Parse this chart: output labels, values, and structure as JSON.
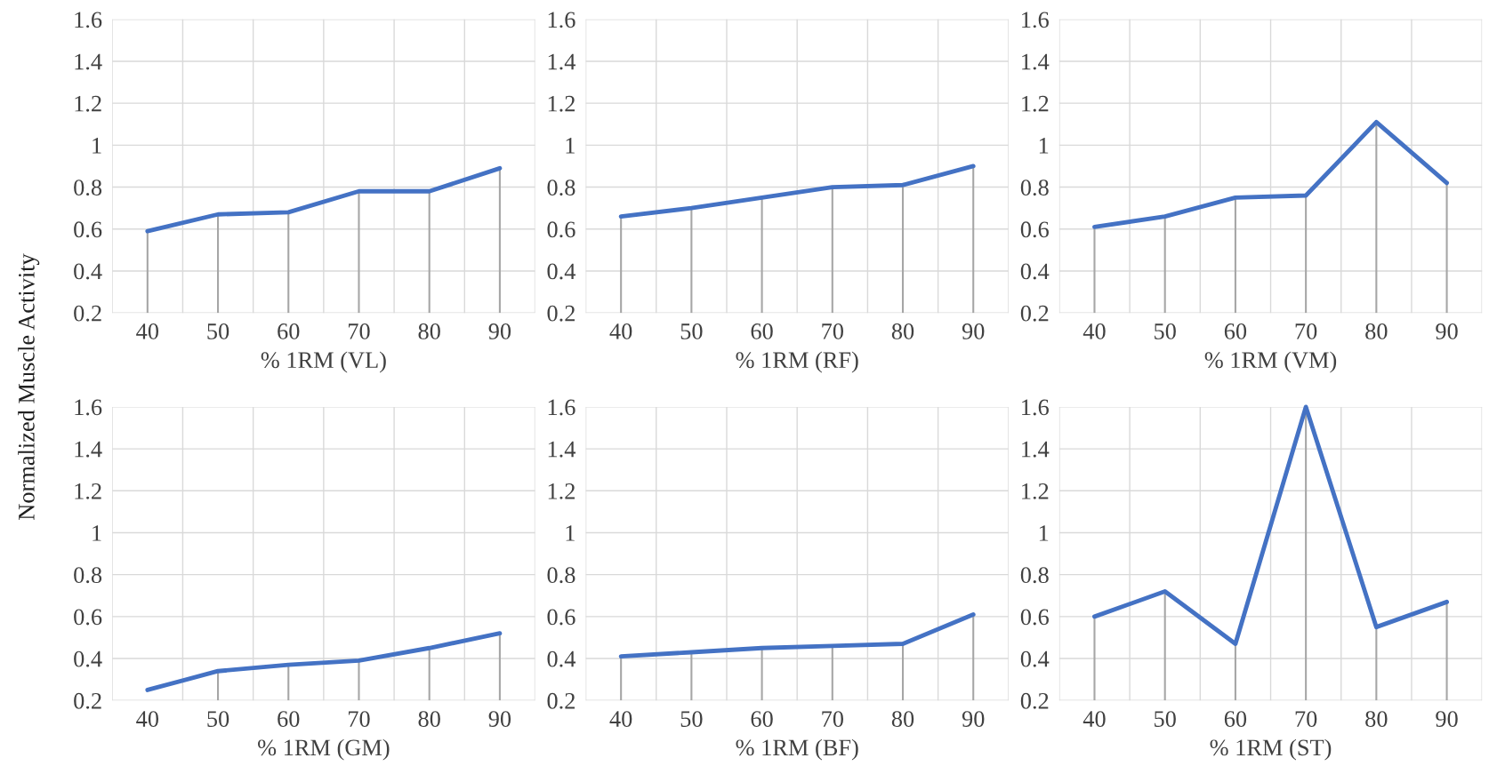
{
  "chart_data": [
    {
      "type": "line",
      "xlabel": "% 1RM (VL)",
      "ylabel": "Normalized Muscle Activity",
      "categories": [
        "40",
        "50",
        "60",
        "70",
        "80",
        "90"
      ],
      "series": [
        {
          "color": "#4472c4",
          "values": [
            0.59,
            0.67,
            0.68,
            0.78,
            0.78,
            0.89
          ],
          "errors": [
            [
              0.2,
              0.59
            ],
            [
              0.2,
              0.67
            ],
            [
              0.2,
              0.68
            ],
            [
              0.2,
              0.78
            ],
            [
              0.2,
              0.78
            ],
            [
              0.2,
              0.89
            ]
          ]
        }
      ],
      "ylim": [
        0.2,
        1.6
      ],
      "yticks": [
        0.2,
        0.4,
        0.6,
        0.8,
        1,
        1.2,
        1.4,
        1.6
      ],
      "grid": true
    },
    {
      "type": "line",
      "xlabel": "% 1RM (RF)",
      "categories": [
        "40",
        "50",
        "60",
        "70",
        "80",
        "90"
      ],
      "series": [
        {
          "color": "#4472c4",
          "values": [
            0.66,
            0.7,
            0.75,
            0.8,
            0.81,
            0.9
          ],
          "errors": [
            [
              0.2,
              0.66
            ],
            [
              0.2,
              0.7
            ],
            [
              0.2,
              0.75
            ],
            [
              0.2,
              0.8
            ],
            [
              0.2,
              0.81
            ],
            [
              0.2,
              0.9
            ]
          ]
        }
      ],
      "ylim": [
        0.2,
        1.6
      ],
      "yticks": [
        0.2,
        0.4,
        0.6,
        0.8,
        1,
        1.2,
        1.4,
        1.6
      ],
      "grid": true
    },
    {
      "type": "line",
      "xlabel": "% 1RM (VM)",
      "categories": [
        "40",
        "50",
        "60",
        "70",
        "80",
        "90"
      ],
      "series": [
        {
          "color": "#4472c4",
          "values": [
            0.61,
            0.66,
            0.75,
            0.76,
            1.11,
            0.82
          ],
          "errors": [
            [
              0.2,
              0.61
            ],
            [
              0.2,
              0.66
            ],
            [
              0.2,
              0.75
            ],
            [
              0.2,
              0.76
            ],
            [
              0.2,
              1.11
            ],
            [
              0.2,
              0.82
            ]
          ]
        }
      ],
      "ylim": [
        0.2,
        1.6
      ],
      "yticks": [
        0.2,
        0.4,
        0.6,
        0.8,
        1,
        1.2,
        1.4,
        1.6
      ],
      "grid": true
    },
    {
      "type": "line",
      "xlabel": "% 1RM (GM)",
      "categories": [
        "40",
        "50",
        "60",
        "70",
        "80",
        "90"
      ],
      "series": [
        {
          "color": "#4472c4",
          "values": [
            0.25,
            0.34,
            0.37,
            0.39,
            0.45,
            0.52
          ],
          "errors": [
            null,
            [
              0.2,
              0.34
            ],
            [
              0.2,
              0.37
            ],
            [
              0.2,
              0.39
            ],
            [
              0.2,
              0.45
            ],
            [
              0.2,
              0.52
            ]
          ]
        }
      ],
      "ylim": [
        0.2,
        1.6
      ],
      "yticks": [
        0.2,
        0.4,
        0.6,
        0.8,
        1,
        1.2,
        1.4,
        1.6
      ],
      "grid": true
    },
    {
      "type": "line",
      "xlabel": "% 1RM (BF)",
      "categories": [
        "40",
        "50",
        "60",
        "70",
        "80",
        "90"
      ],
      "series": [
        {
          "color": "#4472c4",
          "values": [
            0.41,
            0.43,
            0.45,
            0.46,
            0.47,
            0.61
          ],
          "errors": [
            [
              0.2,
              0.41
            ],
            [
              0.2,
              0.43
            ],
            [
              0.2,
              0.45
            ],
            [
              0.2,
              0.46
            ],
            [
              0.2,
              0.47
            ],
            [
              0.2,
              0.61
            ]
          ]
        }
      ],
      "ylim": [
        0.2,
        1.6
      ],
      "yticks": [
        0.2,
        0.4,
        0.6,
        0.8,
        1,
        1.2,
        1.4,
        1.6
      ],
      "grid": true
    },
    {
      "type": "line",
      "xlabel": "% 1RM (ST)",
      "categories": [
        "40",
        "50",
        "60",
        "70",
        "80",
        "90"
      ],
      "series": [
        {
          "color": "#4472c4",
          "values": [
            0.6,
            0.72,
            0.47,
            1.6,
            0.55,
            0.67
          ],
          "errors": [
            [
              0.2,
              0.6
            ],
            [
              0.2,
              0.72
            ],
            [
              0.2,
              0.47
            ],
            [
              0.2,
              1.6
            ],
            [
              0.2,
              0.55
            ],
            [
              0.2,
              0.67
            ]
          ]
        }
      ],
      "ylim": [
        0.2,
        1.6
      ],
      "yticks": [
        0.2,
        0.4,
        0.6,
        0.8,
        1,
        1.2,
        1.4,
        1.6
      ],
      "grid": true
    }
  ]
}
